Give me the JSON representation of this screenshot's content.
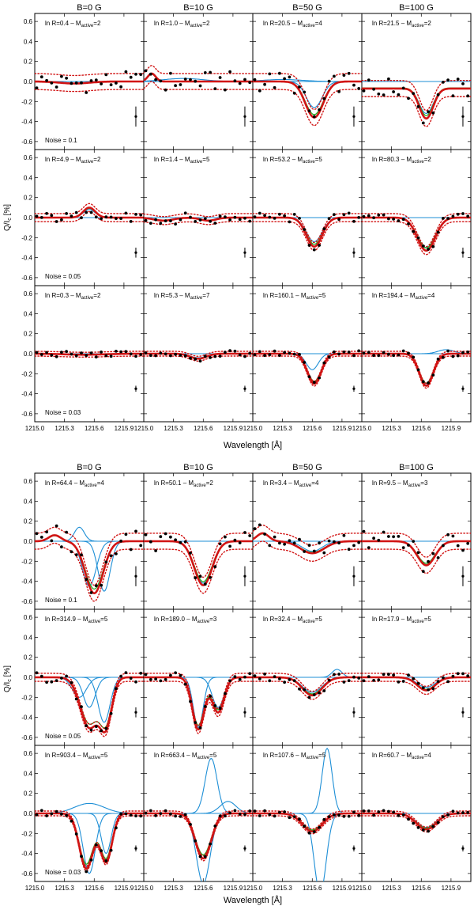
{
  "figure": {
    "blocks": [
      {
        "columns": [
          "B=0 G",
          "B=10 G",
          "B=50 G",
          "B=100 G"
        ],
        "xlabel": "Wavelength [Å]",
        "ylabel_main": "Q/I",
        "ylabel_sub": "c",
        "ylabel_unit": " [%]"
      },
      {
        "columns": [
          "B=0 G",
          "B=10 G",
          "B=50 G",
          "B=100 G"
        ],
        "xlabel": "Wavelength [Å]",
        "ylabel_main": "Q/I",
        "ylabel_sub": "c",
        "ylabel_unit": " [%]"
      }
    ],
    "noise_labels": [
      "Noise = 0.1",
      "Noise = 0.05",
      "Noise = 0.03"
    ],
    "annotation_template": {
      "prefix": "ln R=",
      "mid": " – M",
      "sub": "active",
      "eq": "="
    },
    "colors": {
      "obs": "#000000",
      "fit": "#d11414",
      "conf": "#d11414",
      "green": "#22aa22",
      "comp": "#1e8fd6"
    }
  },
  "chart_data": {
    "type": "line",
    "title": "",
    "xlabel": "Wavelength [Å]",
    "ylabel": "Q/Ic [%]",
    "xlim": [
      1215.0,
      1216.1
    ],
    "ylim": [
      -0.68,
      0.68
    ],
    "xticks": [
      "1215.0",
      "1215.3",
      "1215.6",
      "1215.9"
    ],
    "yticks": [
      "0.6",
      "0.4",
      "0.2",
      "0.0",
      "-0.2",
      "-0.4",
      "-0.6"
    ],
    "panels": [
      {
        "block": 0,
        "row": 0,
        "col": 0,
        "lnR": "0.4",
        "M": "2",
        "profile": [
          {
            "c": 1215.4,
            "a": -0.02,
            "w": 0.15
          }
        ],
        "noise": 0.1,
        "comps": [
          {
            "c": 1215.4,
            "a": -0.02,
            "w": 0.15
          }
        ]
      },
      {
        "block": 0,
        "row": 0,
        "col": 1,
        "lnR": "1.0",
        "M": "2",
        "profile": [
          {
            "c": 1215.08,
            "a": 0.08,
            "w": 0.04
          }
        ],
        "noise": 0.1,
        "comps": [
          {
            "c": 1215.4,
            "a": 0.03,
            "w": 0.2
          }
        ]
      },
      {
        "block": 0,
        "row": 0,
        "col": 2,
        "lnR": "20.5",
        "M": "4",
        "profile": [
          {
            "c": 1215.62,
            "a": -0.36,
            "w": 0.09
          }
        ],
        "noise": 0.1,
        "comps": [
          {
            "c": 1215.62,
            "a": -0.26,
            "w": 0.08
          },
          {
            "c": 1215.3,
            "a": 0.02,
            "w": 0.2
          }
        ]
      },
      {
        "block": 0,
        "row": 0,
        "col": 3,
        "lnR": "21.5",
        "M": "2",
        "profile": [
          {
            "c": 1215.65,
            "a": -0.3,
            "w": 0.07
          }
        ],
        "offset": -0.07,
        "noise": 0.1,
        "comps": [
          {
            "c": 1215.65,
            "a": -0.25,
            "w": 0.07
          }
        ]
      },
      {
        "block": 0,
        "row": 1,
        "col": 0,
        "lnR": "4.9",
        "M": "2",
        "profile": [
          {
            "c": 1215.55,
            "a": 0.1,
            "w": 0.06
          }
        ],
        "noise": 0.05,
        "comps": [
          {
            "c": 1215.55,
            "a": 0.08,
            "w": 0.06
          }
        ]
      },
      {
        "block": 0,
        "row": 1,
        "col": 1,
        "lnR": "1.4",
        "M": "5",
        "profile": [
          {
            "c": 1215.2,
            "a": -0.03,
            "w": 0.1
          },
          {
            "c": 1215.65,
            "a": -0.03,
            "w": 0.08
          }
        ],
        "noise": 0.05,
        "comps": [
          {
            "c": 1215.2,
            "a": -0.03,
            "w": 0.1
          }
        ]
      },
      {
        "block": 0,
        "row": 1,
        "col": 2,
        "lnR": "53.2",
        "M": "5",
        "profile": [
          {
            "c": 1215.62,
            "a": -0.29,
            "w": 0.08
          }
        ],
        "noise": 0.05,
        "comps": [
          {
            "c": 1215.62,
            "a": -0.24,
            "w": 0.08
          }
        ]
      },
      {
        "block": 0,
        "row": 1,
        "col": 3,
        "lnR": "80.3",
        "M": "2",
        "profile": [
          {
            "c": 1215.65,
            "a": -0.33,
            "w": 0.09
          }
        ],
        "noise": 0.05,
        "comps": [
          {
            "c": 1215.65,
            "a": -0.3,
            "w": 0.09
          }
        ]
      },
      {
        "block": 0,
        "row": 2,
        "col": 0,
        "lnR": "0.3",
        "M": "2",
        "profile": [
          {
            "c": 1215.5,
            "a": -0.01,
            "w": 0.2
          }
        ],
        "noise": 0.03,
        "comps": [
          {
            "c": 1215.5,
            "a": -0.01,
            "w": 0.2
          }
        ]
      },
      {
        "block": 0,
        "row": 2,
        "col": 1,
        "lnR": "5.3",
        "M": "7",
        "profile": [
          {
            "c": 1215.55,
            "a": -0.05,
            "w": 0.08
          }
        ],
        "noise": 0.03,
        "comps": [
          {
            "c": 1215.55,
            "a": -0.04,
            "w": 0.08
          }
        ]
      },
      {
        "block": 0,
        "row": 2,
        "col": 2,
        "lnR": "160.1",
        "M": "5",
        "profile": [
          {
            "c": 1215.62,
            "a": -0.3,
            "w": 0.07
          }
        ],
        "noise": 0.03,
        "comps": [
          {
            "c": 1215.6,
            "a": -0.16,
            "w": 0.06
          }
        ]
      },
      {
        "block": 0,
        "row": 2,
        "col": 3,
        "lnR": "194.4",
        "M": "4",
        "profile": [
          {
            "c": 1215.65,
            "a": -0.32,
            "w": 0.07
          }
        ],
        "noise": 0.03,
        "comps": [
          {
            "c": 1215.65,
            "a": -0.3,
            "w": 0.07
          },
          {
            "c": 1215.85,
            "a": 0.04,
            "w": 0.08
          }
        ]
      },
      {
        "block": 1,
        "row": 0,
        "col": 0,
        "lnR": "64.4",
        "M": "4",
        "profile": [
          {
            "c": 1215.6,
            "a": -0.52,
            "w": 0.09
          },
          {
            "c": 1215.2,
            "a": 0.06,
            "w": 0.06
          }
        ],
        "noise": 0.1,
        "comps": [
          {
            "c": 1215.45,
            "a": 0.14,
            "w": 0.05
          },
          {
            "c": 1215.55,
            "a": -0.45,
            "w": 0.07
          },
          {
            "c": 1215.7,
            "a": -0.5,
            "w": 0.06
          }
        ]
      },
      {
        "block": 1,
        "row": 0,
        "col": 1,
        "lnR": "50.1",
        "M": "2",
        "profile": [
          {
            "c": 1215.6,
            "a": -0.44,
            "w": 0.09
          }
        ],
        "noise": 0.1,
        "comps": [
          {
            "c": 1215.6,
            "a": -0.42,
            "w": 0.09
          }
        ]
      },
      {
        "block": 1,
        "row": 0,
        "col": 2,
        "lnR": "3.4",
        "M": "4",
        "profile": [
          {
            "c": 1215.6,
            "a": -0.12,
            "w": 0.12
          },
          {
            "c": 1215.1,
            "a": 0.08,
            "w": 0.06
          }
        ],
        "noise": 0.1,
        "comps": [
          {
            "c": 1215.6,
            "a": -0.1,
            "w": 0.1
          }
        ]
      },
      {
        "block": 1,
        "row": 0,
        "col": 3,
        "lnR": "9.5",
        "M": "3",
        "profile": [
          {
            "c": 1215.65,
            "a": -0.24,
            "w": 0.09
          }
        ],
        "noise": 0.1,
        "comps": [
          {
            "c": 1215.65,
            "a": -0.22,
            "w": 0.09
          }
        ]
      },
      {
        "block": 1,
        "row": 1,
        "col": 0,
        "lnR": "314.9",
        "M": "5",
        "profile": [
          {
            "c": 1215.55,
            "a": -0.5,
            "w": 0.09
          },
          {
            "c": 1215.72,
            "a": -0.45,
            "w": 0.06
          }
        ],
        "noise": 0.05,
        "comps": [
          {
            "c": 1215.45,
            "a": -0.2,
            "w": 0.07
          },
          {
            "c": 1215.55,
            "a": -0.3,
            "w": 0.06
          },
          {
            "c": 1215.7,
            "a": -0.45,
            "w": 0.06
          }
        ]
      },
      {
        "block": 1,
        "row": 1,
        "col": 1,
        "lnR": "189.0",
        "M": "3",
        "profile": [
          {
            "c": 1215.55,
            "a": -0.52,
            "w": 0.06
          },
          {
            "c": 1215.75,
            "a": -0.35,
            "w": 0.06
          }
        ],
        "noise": 0.05,
        "comps": [
          {
            "c": 1215.55,
            "a": -0.5,
            "w": 0.05
          },
          {
            "c": 1215.75,
            "a": -0.3,
            "w": 0.06
          }
        ]
      },
      {
        "block": 1,
        "row": 1,
        "col": 2,
        "lnR": "32.4",
        "M": "5",
        "profile": [
          {
            "c": 1215.6,
            "a": -0.18,
            "w": 0.1
          }
        ],
        "noise": 0.05,
        "comps": [
          {
            "c": 1215.6,
            "a": -0.15,
            "w": 0.1
          },
          {
            "c": 1215.85,
            "a": 0.08,
            "w": 0.05
          }
        ]
      },
      {
        "block": 1,
        "row": 1,
        "col": 3,
        "lnR": "17.9",
        "M": "5",
        "profile": [
          {
            "c": 1215.65,
            "a": -0.13,
            "w": 0.09
          }
        ],
        "noise": 0.05,
        "comps": [
          {
            "c": 1215.65,
            "a": -0.1,
            "w": 0.09
          }
        ]
      },
      {
        "block": 1,
        "row": 2,
        "col": 0,
        "lnR": "903.4",
        "M": "5",
        "profile": [
          {
            "c": 1215.52,
            "a": -0.55,
            "w": 0.07
          },
          {
            "c": 1215.72,
            "a": -0.48,
            "w": 0.06
          }
        ],
        "noise": 0.03,
        "comps": [
          {
            "c": 1215.55,
            "a": -0.6,
            "w": 0.06
          },
          {
            "c": 1215.72,
            "a": -0.4,
            "w": 0.05
          },
          {
            "c": 1215.55,
            "a": 0.1,
            "w": 0.15
          }
        ]
      },
      {
        "block": 1,
        "row": 2,
        "col": 1,
        "lnR": "663.4",
        "M": "5",
        "profile": [
          {
            "c": 1215.6,
            "a": -0.45,
            "w": 0.08
          }
        ],
        "noise": 0.03,
        "comps": [
          {
            "c": 1215.68,
            "a": 0.55,
            "w": 0.06
          },
          {
            "c": 1215.6,
            "a": -0.7,
            "w": 0.07
          },
          {
            "c": 1215.85,
            "a": 0.12,
            "w": 0.08
          }
        ]
      },
      {
        "block": 1,
        "row": 2,
        "col": 2,
        "lnR": "107.6",
        "M": "5",
        "profile": [
          {
            "c": 1215.6,
            "a": -0.18,
            "w": 0.1
          }
        ],
        "noise": 0.03,
        "comps": [
          {
            "c": 1215.75,
            "a": 0.65,
            "w": 0.05
          },
          {
            "c": 1215.68,
            "a": -0.8,
            "w": 0.06
          }
        ]
      },
      {
        "block": 1,
        "row": 2,
        "col": 3,
        "lnR": "60.7",
        "M": "4",
        "profile": [
          {
            "c": 1215.65,
            "a": -0.16,
            "w": 0.1
          }
        ],
        "noise": 0.03,
        "comps": [
          {
            "c": 1215.65,
            "a": -0.14,
            "w": 0.1
          }
        ]
      }
    ]
  }
}
